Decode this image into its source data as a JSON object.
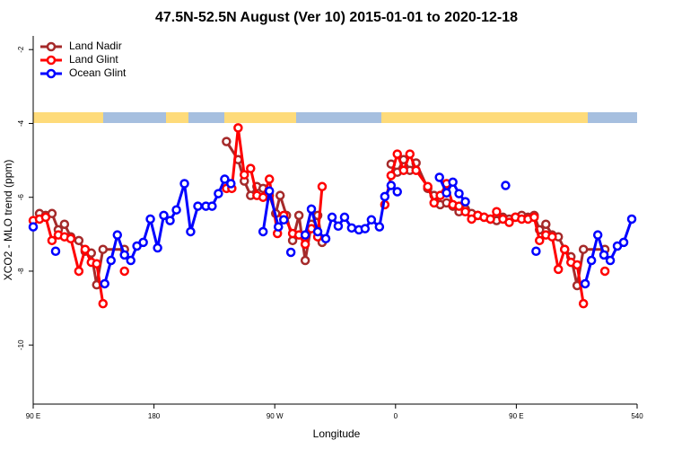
{
  "chart_data": {
    "type": "line",
    "title": "47.5N-52.5N August (Ver 10)   2015-01-01 to 2020-12-18",
    "x_label": "Longitude",
    "y_label": "XCO2 - MLO trend (ppm)",
    "xlim": [
      90,
      540
    ],
    "ylim": [
      -11.6,
      -1.63
    ],
    "xticks": [
      {
        "value": 90,
        "label": "90 E"
      },
      180,
      {
        "value": 270,
        "label": "90 W"
      },
      {
        "value": 360,
        "label": "0"
      },
      {
        "value": 450,
        "label": "90 E"
      },
      540
    ],
    "yticks": [
      -10,
      -8,
      -6,
      -4,
      -2
    ],
    "legend": "top-left",
    "series": [
      {
        "name": "Land Nadir",
        "color": "#a52a2a",
        "x": [
          94.7,
          99.3,
          104,
          108.7,
          113.3,
          118,
          124,
          128.7,
          133.3,
          137.3,
          142,
          158,
          null,
          234,
          242.7,
          247.3,
          252,
          256.7,
          261.3,
          266,
          270.7,
          274,
          278.7,
          283.3,
          288,
          292.7,
          297.3,
          302,
          305.3,
          null,
          356.7,
          361.3,
          366,
          370.7,
          375.3,
          384,
          388.7,
          393.3,
          398,
          402.7,
          407.3,
          412,
          416.7,
          421.3,
          426,
          430.7,
          435.3,
          440,
          444.7,
          449.3,
          454,
          458.7,
          463.3,
          467.3,
          472,
          476.7,
          481.3,
          486,
          490.7,
          495.3,
          500,
          516
        ],
        "values": [
          -6.44,
          -6.49,
          -6.44,
          -6.88,
          -6.73,
          -7.07,
          -7.17,
          -7.46,
          -7.51,
          -8.37,
          -7.41,
          -7.41,
          null,
          -4.49,
          -4.98,
          -5.56,
          -5.95,
          -5.71,
          -5.76,
          -5.95,
          -6.44,
          -5.95,
          -6.49,
          -7.17,
          -6.49,
          -7.71,
          -6.73,
          -6.49,
          -7.22,
          null,
          -5.1,
          -5.32,
          -4.98,
          -5.27,
          -5.07,
          -5.76,
          -5.95,
          -6.2,
          -6.15,
          -6.24,
          -6.39,
          -6.32,
          -6.44,
          -6.49,
          -6.54,
          -6.59,
          -6.63,
          -6.54,
          -6.59,
          -6.54,
          -6.49,
          -6.54,
          -6.49,
          -6.88,
          -6.73,
          -7.02,
          -7.07,
          -7.41,
          -7.61,
          -8.39,
          -7.41,
          -7.41
        ]
      },
      {
        "name": "Land Glint",
        "color": "#ff0000",
        "x": [
          90,
          94.7,
          99.3,
          104,
          108.7,
          113.3,
          118,
          124,
          128.7,
          133.3,
          137.3,
          142,
          null,
          158,
          null,
          234,
          238,
          242.7,
          247.3,
          252,
          256.7,
          261.3,
          266,
          272,
          276.7,
          283.3,
          288,
          292.7,
          297.3,
          302,
          305.3,
          null,
          352,
          356.7,
          361.3,
          366,
          370.7,
          375.3,
          384,
          388.7,
          393.3,
          398,
          402.7,
          407.3,
          412,
          416.7,
          421.3,
          426,
          430.7,
          435.3,
          440,
          444.7,
          449.3,
          454,
          458.7,
          463.3,
          467.3,
          472,
          476.7,
          481.3,
          486,
          490.7,
          495.3,
          500,
          null,
          516
        ],
        "values": [
          -6.63,
          -6.59,
          -6.54,
          -7.17,
          -7.02,
          -7.07,
          -7.12,
          -8.0,
          -7.41,
          -7.76,
          -7.8,
          -8.88,
          null,
          -8.0,
          null,
          -5.76,
          -5.76,
          -4.12,
          -5.39,
          -5.22,
          -5.95,
          -6.0,
          -5.51,
          -6.98,
          -6.49,
          -6.98,
          -7.02,
          -7.27,
          -6.85,
          -7.07,
          -5.71,
          null,
          -6.2,
          -5.41,
          -4.83,
          -5.27,
          -4.83,
          -5.27,
          -5.71,
          -6.15,
          -5.95,
          -5.63,
          -6.2,
          -6.24,
          -6.39,
          -6.59,
          -6.49,
          -6.54,
          -6.59,
          -6.39,
          -6.59,
          -6.68,
          -6.54,
          -6.59,
          -6.59,
          -6.54,
          -7.17,
          -7.02,
          -7.07,
          -7.95,
          -7.41,
          -7.76,
          -7.83,
          -8.88,
          null,
          -8.0
        ]
      },
      {
        "name": "Ocean Glint",
        "color": "#0000ff",
        "x": [
          90,
          null,
          106.7,
          null,
          143.3,
          148,
          152.7,
          158,
          162.7,
          167.3,
          172,
          177.3,
          182.7,
          187.3,
          192,
          196.7,
          202.7,
          207.3,
          212.7,
          218.7,
          223.3,
          228,
          232.7,
          237.3,
          null,
          261.3,
          266,
          272.7,
          276.7,
          null,
          282,
          null,
          292.7,
          297.3,
          302,
          308,
          312.7,
          317.3,
          322,
          327.3,
          332.7,
          337.3,
          342,
          348,
          352,
          356.7,
          361.3,
          null,
          392.7,
          398,
          402.7,
          407.3,
          412,
          null,
          442,
          null,
          464.7,
          null,
          501.3,
          506,
          510.7,
          515.3,
          520,
          525.3,
          530,
          536
        ],
        "values": [
          -6.8,
          null,
          -7.46,
          null,
          -8.34,
          -7.71,
          -7.02,
          -7.56,
          -7.71,
          -7.32,
          -7.22,
          -6.59,
          -7.37,
          -6.49,
          -6.63,
          -6.34,
          -5.63,
          -6.93,
          -6.24,
          -6.24,
          -6.24,
          -5.9,
          -5.51,
          -5.63,
          null,
          -6.93,
          -5.83,
          -6.8,
          -6.61,
          null,
          -7.49,
          null,
          -7.02,
          -6.32,
          -6.93,
          -7.12,
          -6.54,
          -6.78,
          -6.54,
          -6.83,
          -6.88,
          -6.85,
          -6.61,
          -6.8,
          -5.98,
          -5.68,
          -5.85,
          null,
          -5.46,
          -5.88,
          -5.59,
          -5.9,
          -6.12,
          null,
          -5.68,
          null,
          -7.46,
          null,
          -8.34,
          -7.71,
          -7.02,
          -7.56,
          -7.71,
          -7.32,
          -7.22,
          -6.59
        ]
      }
    ]
  }
}
